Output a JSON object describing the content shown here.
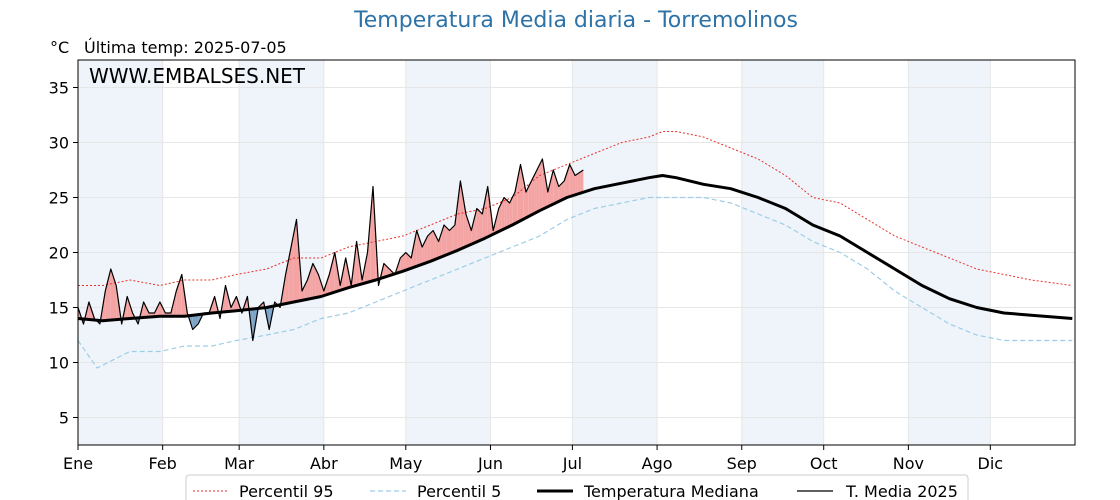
{
  "title": "Temperatura Media diaria - Torremolinos",
  "unit": "°C",
  "last_temp_label": "Última temp: 2025-07-05",
  "watermark": "WWW.EMBALSES.NET",
  "colors": {
    "title": "#2e73a8",
    "watermark": "#2e73a8",
    "p95": "#e8322b",
    "p5": "#9ecde6",
    "median": "#000000",
    "media2025": "#000000",
    "fill_above": "#f4a3a3",
    "fill_below": "#7ca3c6",
    "band": "#eef4fa"
  },
  "chart_data": {
    "type": "line",
    "title": "Temperatura Media diaria - Torremolinos",
    "ylabel": "°C",
    "ylim": [
      2.5,
      37.5
    ],
    "yticks": [
      5,
      10,
      15,
      20,
      25,
      30,
      35
    ],
    "grid": true,
    "months": [
      "Ene",
      "Feb",
      "Mar",
      "Abr",
      "May",
      "Jun",
      "Jul",
      "Ago",
      "Sep",
      "Oct",
      "Nov",
      "Dic"
    ],
    "month_start_days": [
      1,
      32,
      60,
      91,
      121,
      152,
      182,
      213,
      244,
      274,
      305,
      335
    ],
    "legend_position": "bottom-center",
    "series": [
      {
        "name": "Percentil 95",
        "style": "dotted-red",
        "x": [
          1,
          10,
          20,
          31,
          40,
          50,
          59,
          70,
          80,
          90,
          100,
          110,
          120,
          130,
          140,
          150,
          160,
          170,
          180,
          190,
          200,
          210,
          215,
          220,
          230,
          240,
          250,
          260,
          270,
          280,
          290,
          300,
          310,
          320,
          330,
          340,
          350,
          365
        ],
        "y": [
          17,
          17,
          17.5,
          17,
          17.5,
          17.5,
          18,
          18.5,
          19.5,
          19.5,
          20.5,
          21,
          21.5,
          22.5,
          23.5,
          24,
          25,
          27,
          28,
          29,
          30,
          30.5,
          31,
          31,
          30.5,
          29.5,
          28.5,
          27,
          25,
          24.5,
          23,
          21.5,
          20.5,
          19.5,
          18.5,
          18,
          17.5,
          17
        ]
      },
      {
        "name": "Percentil 5",
        "style": "dashed-lightblue",
        "x": [
          1,
          8,
          12,
          20,
          31,
          40,
          50,
          59,
          70,
          80,
          90,
          100,
          110,
          120,
          130,
          140,
          150,
          160,
          170,
          180,
          190,
          200,
          210,
          220,
          230,
          240,
          250,
          260,
          270,
          280,
          290,
          300,
          310,
          320,
          330,
          340,
          350,
          365
        ],
        "y": [
          12,
          9.5,
          10,
          11,
          11,
          11.5,
          11.5,
          12,
          12.5,
          13,
          14,
          14.5,
          15.5,
          16.5,
          17.5,
          18.5,
          19.5,
          20.5,
          21.5,
          23,
          24,
          24.5,
          25,
          25,
          25,
          24.5,
          23.5,
          22.5,
          21,
          20,
          18.5,
          16.5,
          15,
          13.5,
          12.5,
          12,
          12,
          12
        ]
      },
      {
        "name": "Temperatura Mediana",
        "style": "thick-black",
        "x": [
          1,
          10,
          20,
          31,
          40,
          50,
          59,
          70,
          80,
          90,
          100,
          110,
          120,
          130,
          140,
          150,
          160,
          170,
          180,
          190,
          200,
          210,
          215,
          220,
          230,
          240,
          250,
          260,
          270,
          280,
          290,
          300,
          310,
          320,
          330,
          340,
          350,
          365
        ],
        "y": [
          14,
          13.8,
          14,
          14.2,
          14.2,
          14.5,
          14.7,
          15,
          15.5,
          16,
          16.8,
          17.5,
          18.3,
          19.2,
          20.2,
          21.3,
          22.5,
          23.8,
          25,
          25.8,
          26.3,
          26.8,
          27,
          26.8,
          26.2,
          25.8,
          25,
          24,
          22.5,
          21.5,
          20,
          18.5,
          17,
          15.8,
          15,
          14.5,
          14.3,
          14
        ]
      },
      {
        "name": "T. Media 2025",
        "style": "thin-black",
        "x": [
          1,
          3,
          5,
          7,
          9,
          11,
          13,
          15,
          17,
          19,
          21,
          23,
          25,
          27,
          29,
          31,
          33,
          35,
          37,
          39,
          41,
          43,
          45,
          47,
          49,
          51,
          53,
          55,
          57,
          59,
          61,
          63,
          65,
          67,
          69,
          71,
          73,
          75,
          77,
          79,
          81,
          83,
          85,
          87,
          89,
          91,
          93,
          95,
          97,
          99,
          101,
          103,
          105,
          107,
          109,
          111,
          113,
          115,
          117,
          119,
          121,
          123,
          125,
          127,
          129,
          131,
          133,
          135,
          137,
          139,
          141,
          143,
          145,
          147,
          149,
          151,
          153,
          155,
          157,
          159,
          161,
          163,
          165,
          167,
          169,
          171,
          173,
          175,
          177,
          179,
          181,
          183,
          186
        ],
        "y": [
          15,
          13.5,
          15.5,
          14,
          13.5,
          16.5,
          18.5,
          17,
          13.5,
          16,
          14.5,
          13.5,
          15.5,
          14.5,
          14.5,
          15.5,
          14.5,
          14.5,
          16.5,
          18,
          14.5,
          13,
          13.5,
          14.5,
          14.5,
          16,
          14,
          17,
          15,
          16,
          14.5,
          16,
          12,
          15,
          15.5,
          13,
          15.5,
          15,
          18,
          20.5,
          23,
          16.5,
          17.5,
          19,
          18,
          16.5,
          18,
          20,
          17,
          19.5,
          17,
          21,
          17.5,
          20,
          26,
          17,
          19,
          18.5,
          18,
          19.5,
          20,
          19.5,
          22,
          20.5,
          21.5,
          22,
          21,
          22.5,
          22,
          22.5,
          26.5,
          23.5,
          22,
          24,
          23.5,
          26,
          22,
          24,
          25,
          24.5,
          25.5,
          28,
          25.5,
          26.5,
          27.5,
          28.5,
          25.5,
          27.5,
          26,
          26.5,
          28,
          27,
          27.5
        ]
      }
    ]
  },
  "legend": [
    {
      "label": "Percentil 95"
    },
    {
      "label": "Percentil 5"
    },
    {
      "label": "Temperatura Mediana"
    },
    {
      "label": "T. Media 2025"
    }
  ]
}
